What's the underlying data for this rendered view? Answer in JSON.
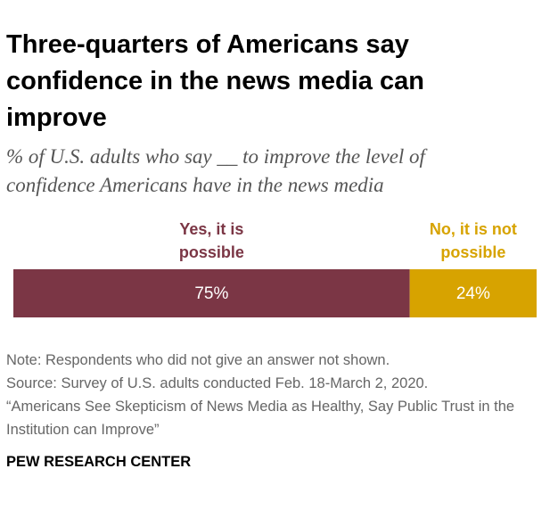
{
  "chart_data": {
    "type": "stacked_bar_horizontal",
    "title": "Three-quarters of Americans say confidence in the news media can improve",
    "subtitle": "% of U.S. adults who say __ to improve the level of confidence Americans have in the news media",
    "series": [
      {
        "name": "Yes, it is possible",
        "color": "#7b3645",
        "values": [
          75
        ],
        "value_labels": [
          "75%"
        ]
      },
      {
        "name": "No, it is not possible",
        "color": "#d7a300",
        "values": [
          24
        ],
        "value_labels": [
          "24%"
        ]
      }
    ],
    "note": "Note: Respondents who did not give an answer not shown.",
    "source": "Source: Survey of U.S. adults conducted Feb. 18-March 2, 2020.",
    "citation": "“Americans See Skepticism of News Media as Healthy, Say Public Trust in the Institution can Improve”",
    "footer": "PEW RESEARCH CENTER"
  }
}
